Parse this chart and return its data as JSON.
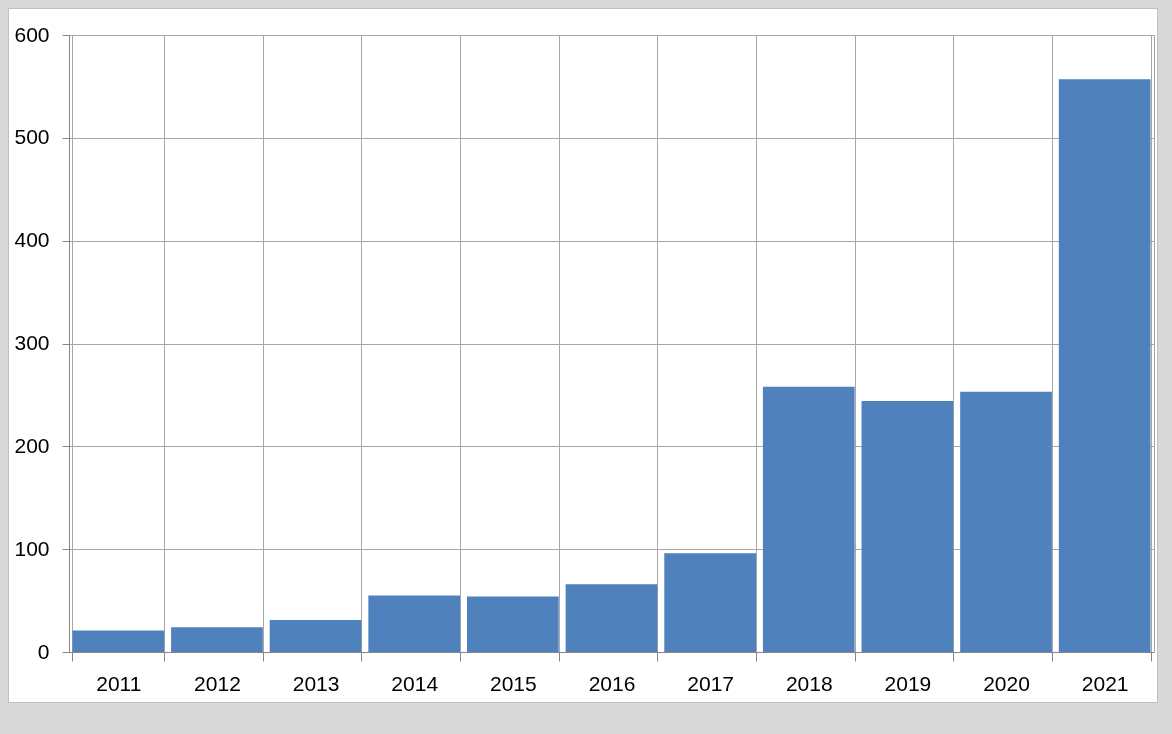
{
  "chart_data": {
    "type": "bar",
    "categories": [
      "2011",
      "2012",
      "2013",
      "2014",
      "2015",
      "2016",
      "2017",
      "2018",
      "2019",
      "2020",
      "2021"
    ],
    "values": [
      21,
      24,
      31,
      55,
      54,
      66,
      96,
      258,
      244,
      253,
      557
    ],
    "color": "#4f81bd",
    "ylim": [
      0,
      600
    ],
    "yticks": [
      0,
      100,
      200,
      300,
      400,
      500,
      600
    ],
    "grid": true
  }
}
